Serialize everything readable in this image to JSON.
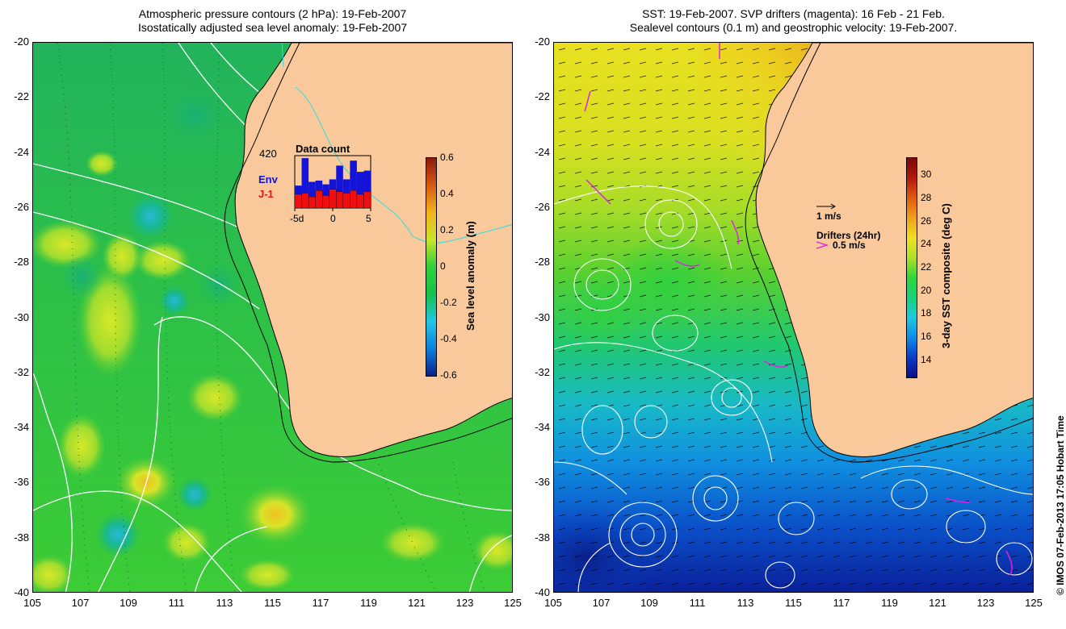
{
  "left_panel": {
    "title_line1": "Atmospheric pressure contours (2 hPa): 19-Feb-2007",
    "title_line2": "Isostatically adjusted sea level anomaly: 19-Feb-2007",
    "colorbar": {
      "label": "Sea level anomaly (m)",
      "ticks": [
        "0.6",
        "0.4",
        "0.2",
        "0",
        "-0.2",
        "-0.4",
        "-0.6"
      ],
      "range": [
        -0.6,
        0.6
      ],
      "colors": [
        "#0a1f8a",
        "#0c7fe0",
        "#22c7e6",
        "#14c24a",
        "#2fcf3a",
        "#c8e52c",
        "#f2b41e",
        "#d55a12",
        "#8a1a0d"
      ]
    },
    "inset": {
      "title": "Data count",
      "max_label": "420",
      "legend": [
        {
          "label": "Env",
          "color": "#1414d8"
        },
        {
          "label": "J-1",
          "color": "#ee1010"
        }
      ],
      "x_ticks": [
        "-5d",
        "0",
        "5"
      ],
      "env_counts": [
        180,
        400,
        210,
        220,
        190,
        230,
        340,
        230,
        380,
        290,
        300
      ],
      "j1_counts": [
        110,
        120,
        90,
        140,
        100,
        150,
        130,
        120,
        140,
        110,
        130
      ],
      "max_count": 420
    }
  },
  "right_panel": {
    "title_line1": "SST: 19-Feb-2007. SVP drifters (magenta): 16 Feb - 21 Feb.",
    "title_line2": "Sealevel contours (0.1 m) and geostrophic velocity: 19-Feb-2007.",
    "colorbar": {
      "label": "3-day SST composite (deg C)",
      "ticks": [
        "30",
        "28",
        "26",
        "24",
        "22",
        "20",
        "18",
        "16",
        "14"
      ],
      "tick_values": [
        30,
        28,
        26,
        24,
        22,
        20,
        18,
        16,
        14
      ],
      "range": [
        12.5,
        31.5
      ],
      "colors": [
        "#0a0f8a",
        "#0a3cc8",
        "#0f8ce8",
        "#20c8e0",
        "#18d07a",
        "#30d838",
        "#b0e028",
        "#f0e020",
        "#f0a018",
        "#e05a10",
        "#b01a08",
        "#7a0808"
      ]
    },
    "legend_vector_label": "1 m/s",
    "legend_drifter_title": "Drifters (24hr)",
    "legend_drifter_label": "0.5 m/s"
  },
  "axes": {
    "x_ticks": [
      105,
      107,
      109,
      111,
      113,
      115,
      117,
      119,
      121,
      123,
      125
    ],
    "y_ticks": [
      -20,
      -22,
      -24,
      -26,
      -28,
      -30,
      -32,
      -34,
      -36,
      -38,
      -40
    ],
    "lon_range": [
      105,
      125
    ],
    "lat_range": [
      -40,
      -20
    ]
  },
  "colors": {
    "land": "#f9c89b",
    "coast": "#000000",
    "contour": "#ffffff",
    "drifter": "#e020e0",
    "river": "#30e0e0"
  },
  "credit": "© IMOS 07-Feb-2013 17:05 Hobart Time"
}
